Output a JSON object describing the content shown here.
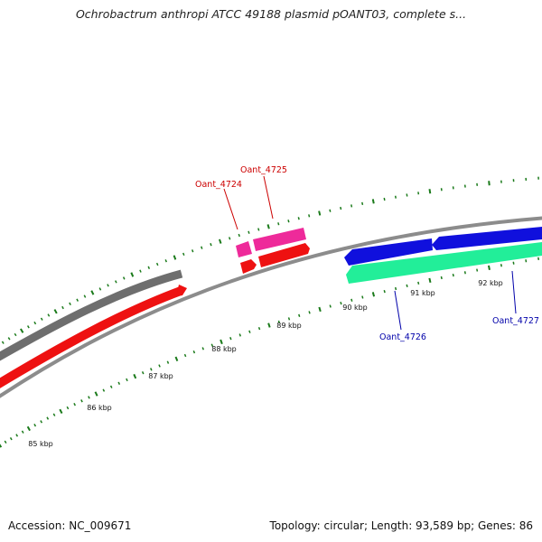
{
  "title": "Ochrobactrum anthropi ATCC 49188 plasmid pOANT03, complete s...",
  "footer": {
    "accession": "Accession: NC_009671",
    "summary": "Topology: circular; Length: 93,589 bp; Genes: 86"
  },
  "colors": {
    "backbone": "#8c8c8c",
    "gray_feature": "#6e6e6e",
    "red_feature": "#ee1111",
    "pink_feature": "#ee2a9a",
    "blue_feature": "#1010dd",
    "green_feature": "#22ee99",
    "tick_color": "#1a7a1a",
    "label_red": "#cc0000",
    "label_blue": "#0000aa"
  },
  "scale": {
    "unit": "kbp",
    "labels": [
      "85 kbp",
      "86 kbp",
      "87 kbp",
      "88 kbp",
      "89 kbp",
      "90 kbp",
      "91 kbp",
      "92 kbp"
    ]
  },
  "gene_labels": {
    "oant_4724": "Oant_4724",
    "oant_4725": "Oant_4725",
    "oant_4726": "Oant_4726",
    "oant_4727": "Oant_4727"
  }
}
